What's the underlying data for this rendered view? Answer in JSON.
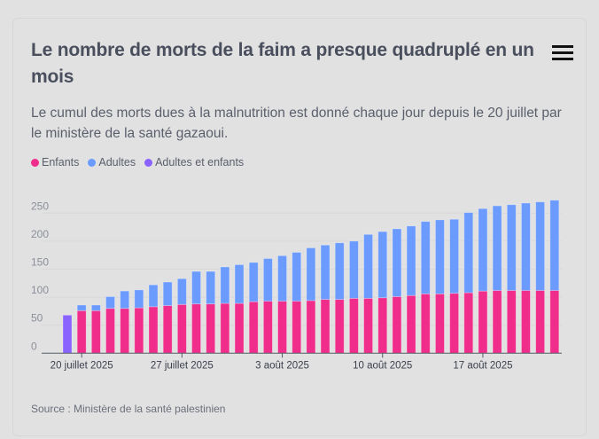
{
  "header": {
    "title": "Le nombre de morts de la faim a presque quadruplé en un mois",
    "subtitle": "Le cumul des morts dues à la malnutrition est donné chaque jour depuis le 20 juillet par le ministère de la santé gazaoui.",
    "menu_icon": "hamburger-menu-icon"
  },
  "source": "Source : Ministère de la santé palestinien",
  "chart_data": {
    "type": "bar",
    "stacked": true,
    "title": "Le nombre de morts de la faim a presque quadruplé en un mois",
    "xlabel": "",
    "ylabel": "",
    "ylim": [
      0,
      270
    ],
    "yticks": [
      0,
      50,
      100,
      150,
      200,
      250
    ],
    "grid": true,
    "legend_position": "top-left",
    "colors": {
      "Enfants": "#f02d8a",
      "Adultes": "#6b9bff",
      "Adultes et enfants": "#8a63ff"
    },
    "legend": [
      "Enfants",
      "Adultes",
      "Adultes et enfants"
    ],
    "x_tick_labels": [
      {
        "index": 1,
        "label": "20 juillet 2025"
      },
      {
        "index": 8,
        "label": "27 juillet 2025"
      },
      {
        "index": 15,
        "label": "3 août 2025"
      },
      {
        "index": 22,
        "label": "10 août 2025"
      },
      {
        "index": 29,
        "label": "17 août 2025"
      }
    ],
    "categories": [
      "19/07",
      "20/07",
      "21/07",
      "22/07",
      "23/07",
      "24/07",
      "25/07",
      "26/07",
      "27/07",
      "28/07",
      "29/07",
      "30/07",
      "31/07",
      "01/08",
      "02/08",
      "03/08",
      "04/08",
      "05/08",
      "06/08",
      "07/08",
      "08/08",
      "09/08",
      "10/08",
      "11/08",
      "12/08",
      "13/08",
      "14/08",
      "15/08",
      "16/08",
      "17/08",
      "18/08",
      "19/08",
      "20/08",
      "21/08",
      "22/08"
    ],
    "series": [
      {
        "name": "Adultes et enfants",
        "values": [
          68,
          0,
          0,
          0,
          0,
          0,
          0,
          0,
          0,
          0,
          0,
          0,
          0,
          0,
          0,
          0,
          0,
          0,
          0,
          0,
          0,
          0,
          0,
          0,
          0,
          0,
          0,
          0,
          0,
          0,
          0,
          0,
          0,
          0,
          0
        ]
      },
      {
        "name": "Enfants",
        "values": [
          0,
          76,
          76,
          80,
          80,
          81,
          83,
          85,
          87,
          88,
          88,
          89,
          89,
          92,
          93,
          93,
          93,
          94,
          96,
          96,
          98,
          98,
          99,
          101,
          103,
          106,
          106,
          107,
          108,
          111,
          112,
          112,
          112,
          112,
          112
        ]
      },
      {
        "name": "Adultes",
        "values": [
          0,
          10,
          10,
          21,
          31,
          32,
          39,
          42,
          46,
          58,
          58,
          65,
          69,
          70,
          76,
          81,
          87,
          94,
          97,
          101,
          102,
          114,
          118,
          121,
          124,
          129,
          132,
          132,
          143,
          147,
          151,
          153,
          156,
          158,
          161
        ]
      }
    ]
  }
}
